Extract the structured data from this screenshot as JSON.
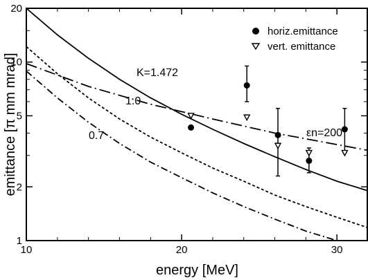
{
  "chart_data": {
    "type": "scatter",
    "xlabel": "energy [MeV]",
    "ylabel": "emittance [π mm mrad]",
    "xlim": [
      10,
      32
    ],
    "ylim": [
      1,
      20
    ],
    "yscale": "log",
    "grid": false,
    "legend_position": "top-right",
    "x_ticks": [
      10,
      20,
      30
    ],
    "y_ticks": [
      1,
      2,
      5,
      10,
      20
    ],
    "x_tick_labels": [
      "10",
      "20",
      "30"
    ],
    "y_tick_labels": [
      "1",
      "2",
      "5",
      "10",
      "20"
    ],
    "series": [
      {
        "name": "horiz.emittance",
        "marker": "filled-circle",
        "points": [
          {
            "x": 20.6,
            "y": 4.3,
            "err": null
          },
          {
            "x": 24.2,
            "y": 7.4,
            "err": [
              6.0,
              9.5
            ]
          },
          {
            "x": 26.2,
            "y": 3.9,
            "err": [
              2.3,
              5.5
            ]
          },
          {
            "x": 28.2,
            "y": 2.8,
            "err": [
              2.4,
              3.3
            ]
          },
          {
            "x": 30.5,
            "y": 4.2,
            "err": [
              3.1,
              5.5
            ]
          }
        ]
      },
      {
        "name": "vert. emittance",
        "marker": "open-triangle-down",
        "points": [
          {
            "x": 20.6,
            "y": 5.0
          },
          {
            "x": 24.2,
            "y": 4.9
          },
          {
            "x": 26.2,
            "y": 3.4
          },
          {
            "x": 28.2,
            "y": 3.1
          },
          {
            "x": 30.5,
            "y": 3.1
          }
        ]
      }
    ],
    "curves": [
      {
        "label": "K=1.472",
        "style": "solid",
        "x": [
          10,
          12,
          14,
          16,
          18,
          20,
          22,
          24,
          26,
          28,
          30,
          32
        ],
        "y": [
          20,
          14.2,
          10.5,
          8.0,
          6.3,
          5.1,
          4.2,
          3.5,
          2.95,
          2.5,
          2.15,
          1.9
        ]
      },
      {
        "label": "1.0",
        "style": "dashed",
        "x": [
          10,
          12,
          14,
          16,
          18,
          20,
          22,
          24,
          26,
          28,
          30,
          32
        ],
        "y": [
          12.2,
          8.6,
          6.3,
          4.8,
          3.8,
          3.1,
          2.55,
          2.15,
          1.8,
          1.55,
          1.35,
          1.18
        ]
      },
      {
        "label": "0.7",
        "style": "dash-dot",
        "x": [
          10,
          12,
          14,
          16,
          18,
          20,
          22,
          24,
          26,
          28,
          30
        ],
        "y": [
          8.9,
          6.3,
          4.6,
          3.5,
          2.75,
          2.25,
          1.85,
          1.55,
          1.32,
          1.13,
          1.0
        ]
      },
      {
        "label": "εn=200",
        "style": "dash-dot-long",
        "x": [
          10,
          14,
          18,
          22,
          26,
          30,
          32
        ],
        "y": [
          9.8,
          7.3,
          5.8,
          4.8,
          4.0,
          3.45,
          3.2
        ]
      }
    ]
  }
}
